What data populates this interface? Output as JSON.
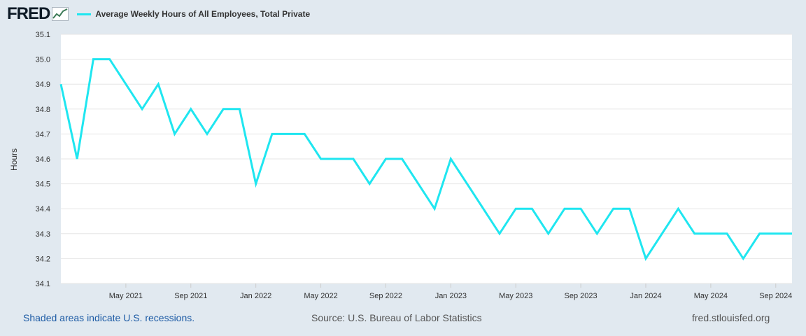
{
  "header": {
    "logo_text": "FRED",
    "logo_icon": "trend-line-icon"
  },
  "colors": {
    "series": "#1fe6f0",
    "plot_bg": "#ffffff",
    "page_bg": "#e1e9f0",
    "grid": "#e6e6e6",
    "link": "#1d5ba5"
  },
  "chart_data": {
    "type": "line",
    "title": "",
    "xlabel": "",
    "ylabel": "Hours",
    "ylim": [
      34.1,
      35.1
    ],
    "yticks": [
      "35.1",
      "35.0",
      "34.9",
      "34.8",
      "34.7",
      "34.6",
      "34.5",
      "34.4",
      "34.3",
      "34.2",
      "34.1"
    ],
    "x_start": "Jan 2021",
    "x_end": "Oct 2024",
    "xticks": [
      {
        "label": "May 2021",
        "month_index": 4
      },
      {
        "label": "Sep 2021",
        "month_index": 8
      },
      {
        "label": "Jan 2022",
        "month_index": 12
      },
      {
        "label": "May 2022",
        "month_index": 16
      },
      {
        "label": "Sep 2022",
        "month_index": 20
      },
      {
        "label": "Jan 2023",
        "month_index": 24
      },
      {
        "label": "May 2023",
        "month_index": 28
      },
      {
        "label": "Sep 2023",
        "month_index": 32
      },
      {
        "label": "Jan 2024",
        "month_index": 36
      },
      {
        "label": "May 2024",
        "month_index": 40
      },
      {
        "label": "Sep 2024",
        "month_index": 44
      }
    ],
    "legend": "top-left",
    "grid": true,
    "series": [
      {
        "name": "Average Weekly Hours of All Employees, Total Private",
        "values": [
          34.9,
          34.6,
          35.0,
          35.0,
          34.9,
          34.8,
          34.9,
          34.7,
          34.8,
          34.7,
          34.8,
          34.8,
          34.5,
          34.7,
          34.7,
          34.7,
          34.6,
          34.6,
          34.6,
          34.5,
          34.6,
          34.6,
          34.5,
          34.4,
          34.6,
          34.5,
          34.4,
          34.3,
          34.4,
          34.4,
          34.3,
          34.4,
          34.4,
          34.3,
          34.4,
          34.4,
          34.2,
          34.3,
          34.4,
          34.3,
          34.3,
          34.3,
          34.2,
          34.3,
          34.3,
          34.3
        ]
      }
    ]
  },
  "footer": {
    "recession_note": "Shaded areas indicate U.S. recessions.",
    "source": "Source: U.S. Bureau of Labor Statistics",
    "site": "fred.stlouisfed.org"
  }
}
